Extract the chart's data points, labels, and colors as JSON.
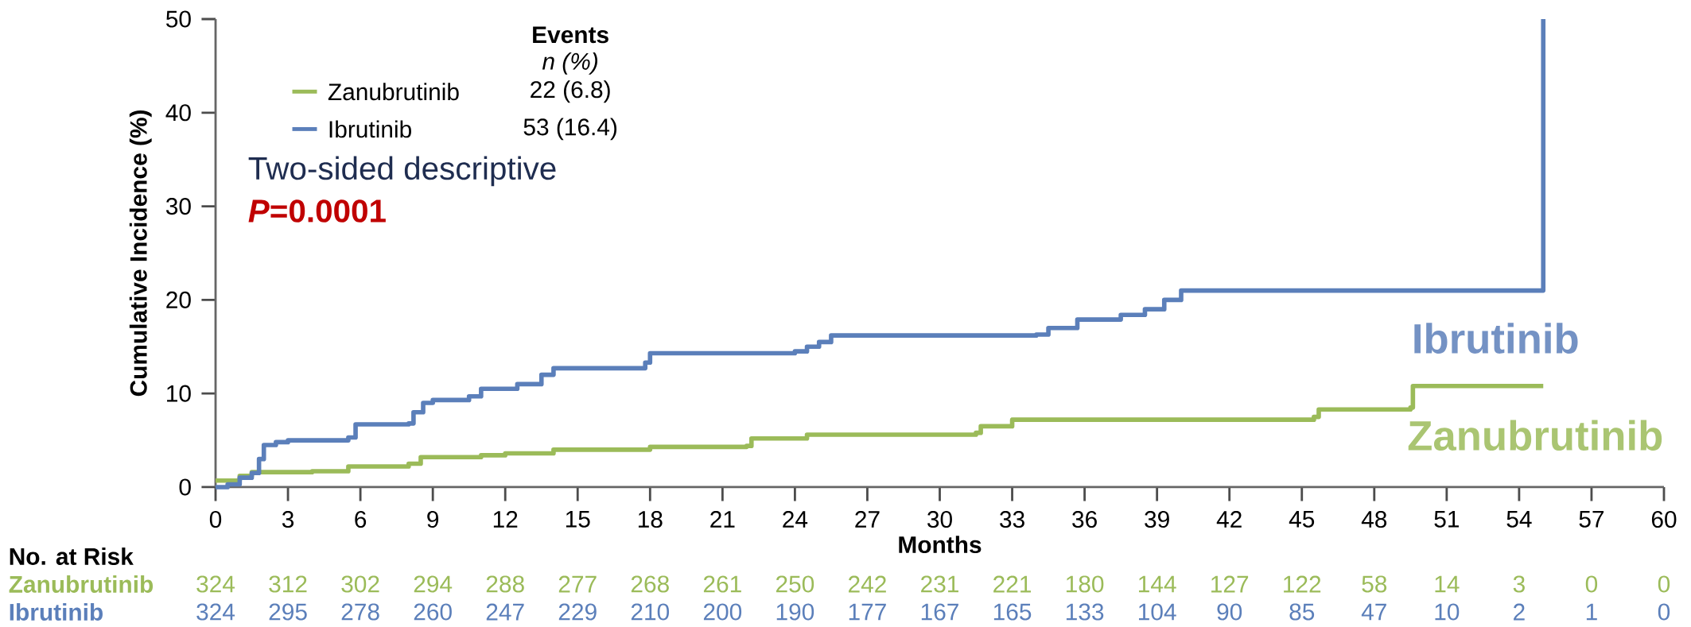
{
  "chart_data": {
    "type": "step",
    "xlabel": "Months",
    "ylabel": "Cumulative Incidence (%)",
    "xlim": [
      0,
      60
    ],
    "xticks": [
      0,
      3,
      6,
      9,
      12,
      15,
      18,
      21,
      24,
      27,
      30,
      33,
      36,
      39,
      42,
      45,
      48,
      51,
      54,
      57,
      60
    ],
    "ylim": [
      0,
      50
    ],
    "yticks": [
      0,
      10,
      20,
      30,
      40,
      50
    ],
    "grid": false,
    "legend": "top left",
    "series": [
      {
        "name": "Zanubrutinib",
        "color": "#9bbb59",
        "x": [
          0,
          1,
          1.5,
          4,
          5.5,
          8,
          8.5,
          11,
          12,
          14,
          18,
          22,
          22.2,
          24.5,
          31.5,
          31.7,
          33,
          45.5,
          45.7,
          49.5,
          49.6,
          55
        ],
        "values": [
          0.7,
          1.2,
          1.6,
          1.7,
          2.2,
          2.5,
          3.2,
          3.4,
          3.6,
          4,
          4.3,
          4.4,
          5.2,
          5.6,
          5.8,
          6.5,
          7.2,
          7.5,
          8.3,
          8.5,
          10.8,
          10.8
        ]
      },
      {
        "name": "Ibrutinib",
        "color": "#5b7fba",
        "x": [
          0,
          0.5,
          1,
          1.5,
          1.8,
          2,
          2.5,
          3,
          5.5,
          5.8,
          8,
          8.2,
          8.6,
          9,
          10.5,
          11,
          12.5,
          13.5,
          14,
          17.8,
          18,
          24,
          24.5,
          25,
          25.5,
          34,
          34.5,
          35.7,
          37.5,
          38.5,
          39.3,
          40,
          55,
          55
        ],
        "values": [
          0,
          0.3,
          1,
          1.5,
          3,
          4.5,
          4.8,
          5,
          5.3,
          6.7,
          6.8,
          8,
          9,
          9.3,
          9.7,
          10.5,
          11,
          12,
          12.7,
          13.3,
          14.3,
          14.5,
          15,
          15.5,
          16.2,
          16.3,
          17,
          17.9,
          18.4,
          19,
          20,
          21,
          21,
          50
        ]
      }
    ],
    "annotations": [
      "Events",
      "n (%)",
      "22 (6.8)",
      "53 (16.4)",
      "Two-sided descriptive",
      "*P*=0.0001",
      "No. at Risk",
      "324",
      "312",
      "302",
      "294",
      "288",
      "277",
      "268",
      "261",
      "250",
      "242",
      "231",
      "221",
      "180",
      "144",
      "127",
      "122",
      "58",
      "14",
      "3",
      "0",
      "0",
      "324",
      "295",
      "278",
      "260",
      "247",
      "229",
      "210",
      "200",
      "190",
      "177",
      "167",
      "165",
      "133",
      "104",
      "90",
      "85",
      "47",
      "10",
      "2",
      "1",
      "0"
    ]
  }
}
